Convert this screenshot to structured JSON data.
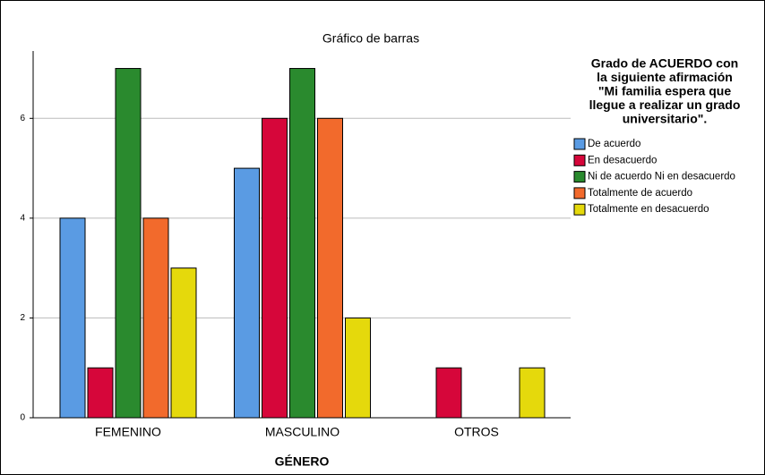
{
  "chart_data": {
    "type": "bar",
    "title": "Gráfico de barras",
    "x_label": "GÉNERO",
    "legend_title": [
      "Grado de ACUERDO con",
      "la siguiente afirmación",
      "\"Mi familia espera que",
      "llegue a realizar un grado",
      "universitario\"."
    ],
    "legend_position": "right",
    "categories": [
      "FEMENINO",
      "MASCULINO",
      "OTROS"
    ],
    "series": [
      {
        "name": "De acuerdo",
        "color": "#5a9be3",
        "values": [
          4,
          5,
          null
        ]
      },
      {
        "name": "En desacuerdo",
        "color": "#d6063a",
        "values": [
          1,
          6,
          1
        ]
      },
      {
        "name": "Ni de acuerdo Ni en desacuerdo",
        "color": "#2a8a2e",
        "values": [
          7,
          7,
          null
        ]
      },
      {
        "name": "Totalmente de acuerdo",
        "color": "#f26a2c",
        "values": [
          4,
          6,
          null
        ]
      },
      {
        "name": "Totalmente en desacuerdo",
        "color": "#e5d90c",
        "values": [
          3,
          2,
          1
        ]
      }
    ],
    "ylim": [
      0,
      7.35
    ],
    "yticks": [
      0,
      2,
      4,
      6
    ],
    "grid": true
  }
}
